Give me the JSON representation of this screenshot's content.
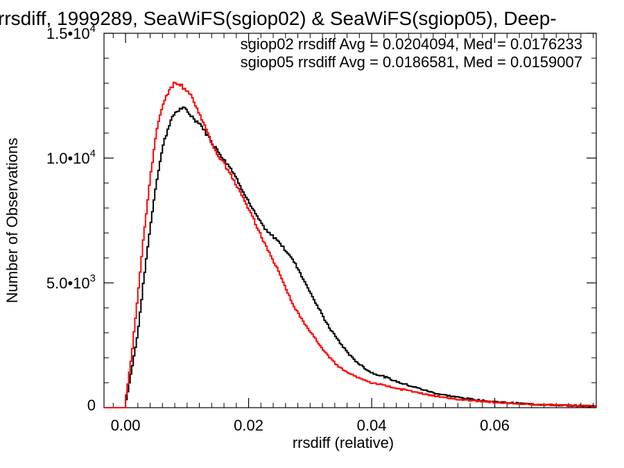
{
  "chart_data": {
    "type": "line",
    "title": "rrsdiff, 1999289, SeaWiFS(sgiop02) & SeaWiFS(sgiop05), Deep-",
    "xlabel": "rrsdiff (relative)",
    "ylabel": "Number of Observations",
    "xlim": [
      -0.0035,
      0.0765
    ],
    "ylim": [
      0,
      15000
    ],
    "x_ticks": [
      {
        "value": 0.0,
        "label": "0.00"
      },
      {
        "value": 0.02,
        "label": "0.02"
      },
      {
        "value": 0.04,
        "label": "0.04"
      },
      {
        "value": 0.06,
        "label": "0.06"
      }
    ],
    "y_ticks": [
      {
        "value": 0,
        "mantissa": "0",
        "exponent": ""
      },
      {
        "value": 5000,
        "mantissa": "5.0•10",
        "exponent": "3"
      },
      {
        "value": 10000,
        "mantissa": "1.0•10",
        "exponent": "4"
      },
      {
        "value": 15000,
        "mantissa": "1.5•10",
        "exponent": "4"
      }
    ],
    "step": "histogram",
    "x_values": [
      -0.002,
      0.0,
      0.001,
      0.002,
      0.003,
      0.004,
      0.005,
      0.006,
      0.007,
      0.008,
      0.009,
      0.01,
      0.011,
      0.012,
      0.013,
      0.014,
      0.015,
      0.016,
      0.017,
      0.018,
      0.019,
      0.02,
      0.021,
      0.022,
      0.023,
      0.024,
      0.025,
      0.026,
      0.027,
      0.028,
      0.029,
      0.03,
      0.031,
      0.032,
      0.033,
      0.034,
      0.035,
      0.036,
      0.037,
      0.038,
      0.039,
      0.04,
      0.042,
      0.044,
      0.046,
      0.048,
      0.05,
      0.052,
      0.055,
      0.058,
      0.061,
      0.064,
      0.067,
      0.07,
      0.073,
      0.0765
    ],
    "series": [
      {
        "name": "sgiop02",
        "color": "#000000",
        "values": [
          0,
          150,
          1500,
          3000,
          5200,
          7200,
          9000,
          10400,
          11300,
          11800,
          12000,
          11900,
          11600,
          11400,
          11050,
          10650,
          10300,
          9950,
          9650,
          9200,
          8750,
          8250,
          7800,
          7400,
          7050,
          6850,
          6650,
          6300,
          6000,
          5600,
          5100,
          4650,
          4150,
          3700,
          3250,
          2900,
          2550,
          2250,
          1950,
          1750,
          1560,
          1400,
          1250,
          1050,
          900,
          750,
          600,
          500,
          380,
          280,
          220,
          170,
          130,
          100,
          80,
          60
        ]
      },
      {
        "name": "sgiop05",
        "color": "#ff0000",
        "values": [
          0,
          300,
          2100,
          4500,
          7000,
          9200,
          11000,
          12100,
          12700,
          13000,
          12950,
          12700,
          12300,
          11800,
          11200,
          10600,
          10100,
          9750,
          9400,
          8950,
          8500,
          8000,
          7450,
          6900,
          6400,
          5900,
          5400,
          4800,
          4250,
          3800,
          3400,
          3050,
          2700,
          2350,
          2050,
          1800,
          1580,
          1430,
          1300,
          1180,
          1100,
          1000,
          900,
          780,
          680,
          570,
          480,
          400,
          310,
          250,
          200,
          160,
          130,
          100,
          80,
          60
        ]
      }
    ],
    "annotations": [
      {
        "text": "sgiop02 rrsdiff Avg = 0.0204094, Med = 0.0176233",
        "color": "#000000"
      },
      {
        "text": "sgiop05 rrsdiff Avg = 0.0186581, Med = 0.0159007",
        "color": "#ff0000"
      }
    ]
  }
}
